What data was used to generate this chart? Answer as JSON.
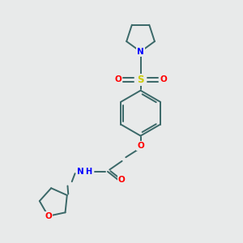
{
  "background_color": "#e8eaea",
  "bond_color": "#3a6868",
  "atom_colors": {
    "N": "#0000ff",
    "O": "#ff0000",
    "S": "#cccc00",
    "H": "#000080",
    "C": "#3a6868"
  },
  "figsize": [
    3.0,
    3.0
  ],
  "dpi": 100,
  "bond_lw": 1.4
}
